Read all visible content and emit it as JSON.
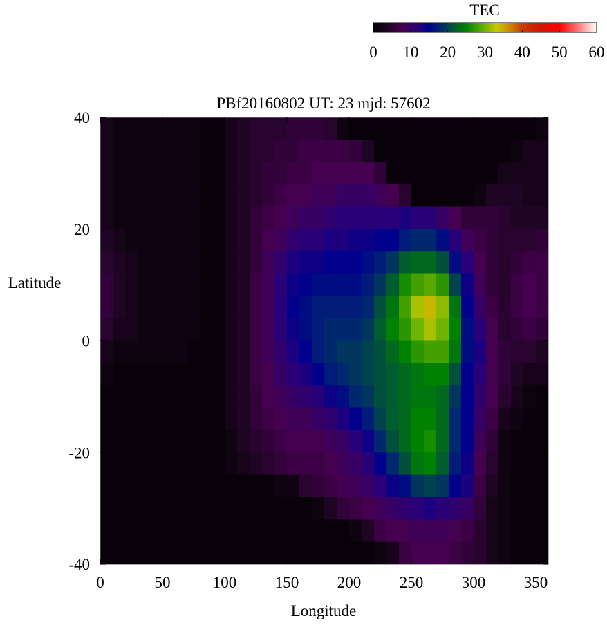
{
  "chart_data": {
    "type": "heatmap",
    "title": "PBf20160802  UT: 23  mjd: 57602",
    "xlabel": "Longitude",
    "ylabel": "Latitude",
    "xlim": [
      0,
      360
    ],
    "ylim": [
      -40,
      40
    ],
    "xticks": [
      "0",
      "50",
      "100",
      "150",
      "200",
      "250",
      "300",
      "350"
    ],
    "yticks": [
      "40",
      "20",
      "0",
      "-20",
      "-40"
    ],
    "x_cell_step": 10,
    "y_cell_step": 4,
    "lon_centers": [
      5,
      15,
      25,
      35,
      45,
      55,
      65,
      75,
      85,
      95,
      105,
      115,
      125,
      135,
      145,
      155,
      165,
      175,
      185,
      195,
      205,
      215,
      225,
      235,
      245,
      255,
      265,
      275,
      285,
      295,
      305,
      315,
      325,
      335,
      345,
      355
    ],
    "lat_centers": [
      38,
      34,
      30,
      26,
      22,
      18,
      14,
      10,
      6,
      2,
      -2,
      -6,
      -10,
      -14,
      -18,
      -22,
      -26,
      -30,
      -34,
      -38
    ],
    "values_by_column": [
      [
        3,
        3,
        3,
        3,
        3,
        4,
        5,
        6,
        6,
        5,
        3,
        2,
        1,
        1,
        1,
        1,
        1,
        1,
        1,
        1
      ],
      [
        2,
        2,
        2,
        2,
        2,
        3,
        4,
        4,
        4,
        3,
        2,
        1,
        1,
        1,
        1,
        1,
        1,
        1,
        1,
        1
      ],
      [
        2,
        2,
        2,
        2,
        2,
        2,
        3,
        3,
        3,
        3,
        2,
        1,
        1,
        1,
        1,
        1,
        1,
        1,
        1,
        1
      ],
      [
        2,
        2,
        2,
        2,
        2,
        2,
        2,
        2,
        2,
        2,
        2,
        1,
        1,
        1,
        1,
        1,
        1,
        1,
        1,
        1
      ],
      [
        2,
        2,
        2,
        2,
        2,
        2,
        2,
        2,
        2,
        2,
        2,
        1,
        1,
        1,
        1,
        1,
        1,
        1,
        1,
        1
      ],
      [
        2,
        2,
        2,
        2,
        2,
        2,
        2,
        2,
        2,
        2,
        2,
        1,
        1,
        1,
        1,
        1,
        1,
        1,
        1,
        1
      ],
      [
        2,
        2,
        2,
        2,
        2,
        2,
        2,
        2,
        2,
        2,
        2,
        1,
        1,
        1,
        1,
        1,
        1,
        1,
        1,
        1
      ],
      [
        2,
        2,
        2,
        2,
        2,
        2,
        2,
        2,
        2,
        2,
        1,
        1,
        1,
        1,
        1,
        1,
        1,
        1,
        1,
        1
      ],
      [
        1,
        1,
        1,
        1,
        1,
        1,
        1,
        1,
        1,
        1,
        1,
        1,
        1,
        1,
        1,
        1,
        1,
        1,
        1,
        1
      ],
      [
        1,
        1,
        1,
        1,
        1,
        1,
        1,
        1,
        1,
        1,
        1,
        1,
        1,
        1,
        1,
        1,
        1,
        1,
        1,
        1
      ],
      [
        3,
        3,
        3,
        3,
        3,
        3,
        3,
        3,
        3,
        3,
        3,
        3,
        3,
        3,
        2,
        2,
        1,
        1,
        1,
        1
      ],
      [
        4,
        4,
        4,
        4,
        4,
        4,
        4,
        4,
        4,
        4,
        4,
        4,
        4,
        4,
        4,
        3,
        1,
        1,
        1,
        1
      ],
      [
        5,
        5,
        5,
        5,
        6,
        6,
        6,
        7,
        7,
        7,
        7,
        7,
        6,
        6,
        5,
        4,
        1,
        1,
        1,
        1
      ],
      [
        5,
        5,
        6,
        6,
        7,
        8,
        9,
        9,
        9,
        9,
        9,
        8,
        8,
        7,
        6,
        5,
        1,
        1,
        1,
        1
      ],
      [
        5,
        6,
        6,
        7,
        8,
        9,
        11,
        12,
        12,
        12,
        11,
        10,
        9,
        8,
        7,
        6,
        2,
        1,
        1,
        1
      ],
      [
        6,
        6,
        7,
        8,
        9,
        11,
        13,
        14,
        15,
        14,
        13,
        12,
        10,
        9,
        8,
        7,
        2,
        1,
        1,
        1
      ],
      [
        6,
        7,
        7,
        8,
        10,
        12,
        14,
        15,
        16,
        16,
        15,
        13,
        11,
        9,
        8,
        7,
        5,
        1,
        1,
        1
      ],
      [
        6,
        7,
        8,
        9,
        10,
        12,
        14,
        16,
        17,
        17,
        17,
        15,
        12,
        10,
        8,
        7,
        6,
        2,
        1,
        1
      ],
      [
        5,
        7,
        8,
        9,
        11,
        13,
        15,
        16,
        17,
        18,
        18,
        17,
        14,
        11,
        9,
        8,
        7,
        4,
        1,
        1
      ],
      [
        2,
        7,
        8,
        10,
        12,
        13,
        15,
        16,
        17,
        18,
        19,
        18,
        16,
        13,
        10,
        9,
        8,
        6,
        1,
        1
      ],
      [
        1,
        6,
        8,
        10,
        12,
        14,
        15,
        16,
        17,
        18,
        19,
        19,
        18,
        15,
        12,
        10,
        9,
        7,
        2,
        1
      ],
      [
        1,
        4,
        8,
        10,
        12,
        14,
        16,
        17,
        18,
        19,
        20,
        20,
        19,
        17,
        14,
        12,
        10,
        8,
        4,
        1
      ],
      [
        1,
        1,
        6,
        9,
        12,
        15,
        17,
        19,
        21,
        22,
        21,
        21,
        21,
        20,
        18,
        15,
        12,
        9,
        7,
        2
      ],
      [
        1,
        1,
        1,
        8,
        12,
        15,
        19,
        22,
        24,
        25,
        23,
        22,
        22,
        22,
        21,
        18,
        14,
        10,
        8,
        3
      ],
      [
        1,
        1,
        1,
        5,
        13,
        17,
        22,
        26,
        28,
        27,
        25,
        23,
        23,
        23,
        23,
        21,
        16,
        11,
        8,
        7
      ],
      [
        1,
        1,
        1,
        1,
        12,
        18,
        23,
        28,
        32,
        30,
        27,
        24,
        24,
        25,
        25,
        24,
        19,
        12,
        9,
        8
      ],
      [
        1,
        1,
        1,
        1,
        12,
        18,
        23,
        29,
        34,
        32,
        28,
        25,
        24,
        25,
        26,
        25,
        20,
        13,
        9,
        8
      ],
      [
        1,
        1,
        1,
        1,
        10,
        16,
        21,
        27,
        31,
        30,
        28,
        25,
        23,
        23,
        23,
        22,
        19,
        12,
        9,
        8
      ],
      [
        1,
        1,
        1,
        1,
        8,
        12,
        16,
        20,
        24,
        25,
        24,
        21,
        19,
        18,
        18,
        17,
        15,
        11,
        8,
        7
      ],
      [
        1,
        1,
        1,
        1,
        6,
        9,
        12,
        14,
        15,
        16,
        16,
        15,
        15,
        15,
        15,
        14,
        13,
        10,
        7,
        6
      ],
      [
        1,
        1,
        1,
        2,
        6,
        7,
        8,
        9,
        10,
        12,
        13,
        12,
        11,
        10,
        9,
        8,
        7,
        6,
        5,
        5
      ],
      [
        1,
        1,
        1,
        4,
        6,
        6,
        6,
        6,
        7,
        8,
        8,
        8,
        8,
        7,
        6,
        5,
        4,
        3,
        3,
        3
      ],
      [
        1,
        1,
        3,
        4,
        5,
        5,
        5,
        5,
        5,
        5,
        6,
        6,
        5,
        3,
        2,
        2,
        2,
        2,
        2,
        2
      ],
      [
        1,
        2,
        3,
        4,
        4,
        5,
        6,
        7,
        7,
        6,
        5,
        4,
        3,
        2,
        1,
        1,
        1,
        1,
        1,
        1
      ],
      [
        1,
        3,
        3,
        3,
        4,
        5,
        7,
        8,
        8,
        7,
        5,
        3,
        2,
        1,
        1,
        1,
        1,
        1,
        1,
        1
      ],
      [
        2,
        3,
        3,
        3,
        4,
        6,
        7,
        7,
        7,
        6,
        4,
        3,
        1,
        1,
        1,
        1,
        1,
        1,
        1,
        1
      ]
    ],
    "colorbar": {
      "label": "TEC",
      "range": [
        0,
        60
      ],
      "ticks": [
        "0",
        "10",
        "20",
        "30",
        "40",
        "50",
        "60"
      ],
      "stops": [
        [
          0,
          "#000000"
        ],
        [
          4,
          "#1e0523"
        ],
        [
          8,
          "#460050"
        ],
        [
          12,
          "#280078"
        ],
        [
          15,
          "#00008c"
        ],
        [
          18,
          "#00286e"
        ],
        [
          21,
          "#00503c"
        ],
        [
          25,
          "#008200"
        ],
        [
          30,
          "#6eb400"
        ],
        [
          33,
          "#c8c800"
        ],
        [
          37,
          "#c88200"
        ],
        [
          40,
          "#c83c00"
        ],
        [
          45,
          "#d21400"
        ],
        [
          50,
          "#ff0000"
        ],
        [
          55,
          "#ff7878"
        ],
        [
          60,
          "#ffffff"
        ]
      ]
    }
  }
}
